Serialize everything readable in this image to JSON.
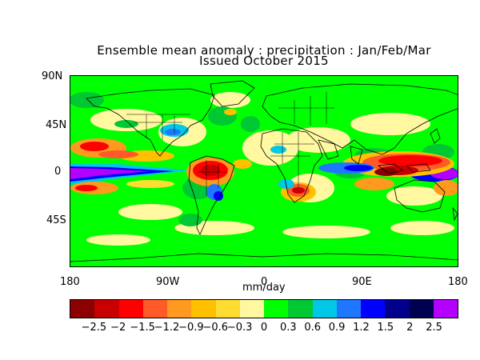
{
  "title_line1": "Ensemble mean anomaly : precipitation : Jan/Feb/Mar",
  "title_line2": "Issued October 2015",
  "lat_labels": [
    "90N",
    "45N",
    "0",
    "45S"
  ],
  "lon_labels": [
    "180",
    "90W",
    "0",
    "90E",
    "180"
  ],
  "units": "mm/day",
  "colorbar": {
    "colors": [
      "#8b0000",
      "#c80000",
      "#ff0000",
      "#ff5a28",
      "#ff9a1e",
      "#ffc000",
      "#ffdc32",
      "#fff8a0",
      "#00ff00",
      "#00c832",
      "#00c8e6",
      "#1e78ff",
      "#0000ff",
      "#00008c",
      "#000050",
      "#b400ff"
    ],
    "tick_labels": [
      "-2.5",
      "-2",
      "-1.5",
      "-1.2",
      "-0.9",
      "-0.6",
      "-0.3",
      "0",
      "0.3",
      "0.6",
      "0.9",
      "1.2",
      "1.5",
      "2",
      "2.5"
    ]
  },
  "palette": {
    "background_wet": "#00ff00",
    "light_dry": "#fff8a0",
    "outline": "#000000"
  }
}
